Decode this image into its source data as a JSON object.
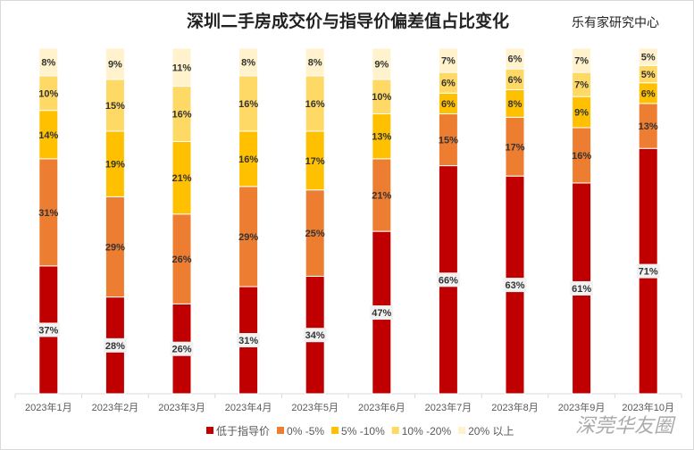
{
  "chart_data": {
    "type": "bar",
    "stacked": true,
    "title": "深圳二手房成交价与指导价偏差值占比变化",
    "source": "乐有家研究中心",
    "watermark": "深莞华友圈",
    "categories": [
      "2023年1月",
      "2023年2月",
      "2023年3月",
      "2023年4月",
      "2023年5月",
      "2023年6月",
      "2023年7月",
      "2023年8月",
      "2023年9月",
      "2023年10月"
    ],
    "series": [
      {
        "name": "低于指导价",
        "color": "#c00000",
        "values": [
          37,
          28,
          26,
          31,
          34,
          47,
          66,
          63,
          61,
          71
        ]
      },
      {
        "name": "0% -5%",
        "color": "#ed7d31",
        "values": [
          31,
          29,
          26,
          29,
          25,
          21,
          15,
          17,
          16,
          13
        ]
      },
      {
        "name": "5% -10%",
        "color": "#ffc000",
        "values": [
          14,
          19,
          21,
          16,
          17,
          13,
          6,
          8,
          9,
          6
        ]
      },
      {
        "name": "10% -20%",
        "color": "#ffd966",
        "values": [
          10,
          15,
          16,
          16,
          16,
          10,
          6,
          6,
          7,
          5
        ]
      },
      {
        "name": "20% 以上",
        "color": "#fff2cc",
        "values": [
          8,
          9,
          11,
          8,
          8,
          9,
          7,
          6,
          7,
          5
        ]
      }
    ],
    "ylim": [
      0,
      100
    ],
    "legend": "bottom"
  }
}
